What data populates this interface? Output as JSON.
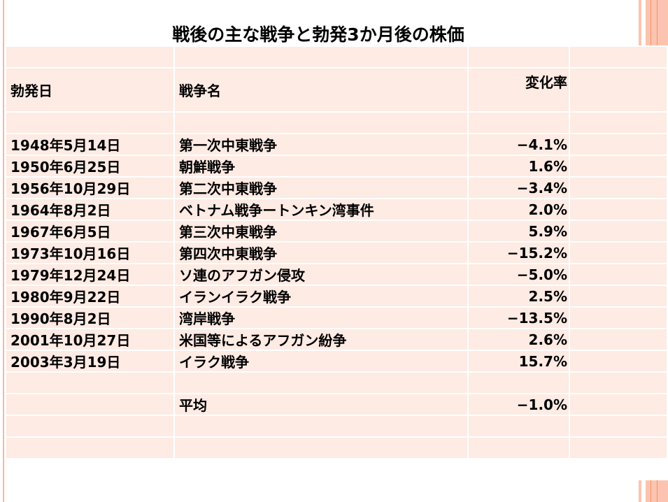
{
  "title": "戦後の主な戦争と勃発3か月後の株価",
  "headers": {
    "date": "勃発日",
    "war": "戦争名",
    "change": "変化率"
  },
  "rows": [
    {
      "date": "1948年5月14日",
      "war": "第一次中東戦争",
      "change": "−4.1%"
    },
    {
      "date": "1950年6月25日",
      "war": "朝鮮戦争",
      "change": "1.6%"
    },
    {
      "date": "1956年10月29日",
      "war": "第二次中東戦争",
      "change": "−3.4%"
    },
    {
      "date": "1964年8月2日",
      "war": "ベトナム戦争ートンキン湾事件",
      "change": "2.0%"
    },
    {
      "date": "1967年6月5日",
      "war": "第三次中東戦争",
      "change": "5.9%"
    },
    {
      "date": "1973年10月16日",
      "war": "第四次中東戦争",
      "change": "−15.2%"
    },
    {
      "date": "1979年12月24日",
      "war": "ソ連のアフガン侵攻",
      "change": "−5.0%"
    },
    {
      "date": "1980年9月22日",
      "war": "イランイラク戦争",
      "change": "2.5%"
    },
    {
      "date": "1990年8月2日",
      "war": "湾岸戦争",
      "change": "−13.5%"
    },
    {
      "date": "2001年10月27日",
      "war": "米国等によるアフガン紛争",
      "change": "2.6%"
    },
    {
      "date": "2003年3月19日",
      "war": "イラク戦争",
      "change": "15.7%"
    }
  ],
  "average": {
    "label": "平均",
    "change": "−1.0%"
  }
}
